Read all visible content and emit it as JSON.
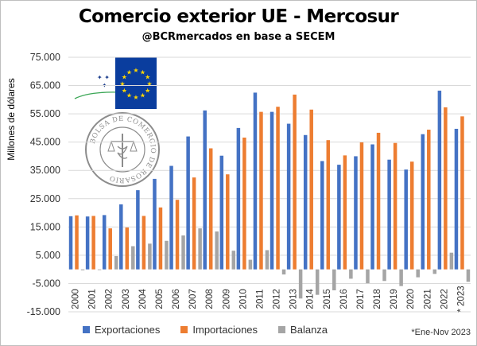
{
  "title": "Comercio exterior UE - Mercosur",
  "subtitle": "@BCRmercados en base a SECEM",
  "footnote": "*Ene-Nov 2023",
  "logo_text": "BOLSA DE COMERCIO DE ROSARIO",
  "colors": {
    "exportaciones": "#4472c4",
    "importaciones": "#ed7d31",
    "balanza": "#a5a5a5",
    "flag": "#0a3d9e",
    "stars": "#ffd700"
  },
  "icons": {
    "flag": "eu-flag-icon",
    "seal": "bcr-seal-icon"
  },
  "chart_data": {
    "type": "bar",
    "title": "Comercio exterior UE - Mercosur",
    "subtitle": "@BCRmercados en base a SECEM",
    "ylabel": "Millones de dólares",
    "xlabel": "",
    "ylim": [
      -15000,
      75000
    ],
    "yticks": [
      "75.000",
      "65.000",
      "55.000",
      "45.000",
      "35.000",
      "25.000",
      "15.000",
      "5.000",
      "-5.000",
      "-15.000"
    ],
    "ytick_values": [
      75000,
      65000,
      55000,
      45000,
      35000,
      25000,
      15000,
      5000,
      -5000,
      -15000
    ],
    "grid": true,
    "legend_position": "bottom",
    "categories": [
      "2000",
      "2001",
      "2002",
      "2003",
      "2004",
      "2005",
      "2006",
      "2007",
      "2008",
      "2009",
      "2010",
      "2011",
      "2012",
      "2013",
      "2014",
      "2015",
      "2016",
      "2017",
      "2018",
      "2019",
      "2020",
      "2021",
      "2022",
      "* 2023"
    ],
    "series": [
      {
        "name": "Exportaciones",
        "values": [
          18800,
          18700,
          19200,
          23000,
          28000,
          32000,
          36600,
          47000,
          56200,
          40200,
          50000,
          62500,
          55700,
          51500,
          47500,
          38300,
          37000,
          40000,
          44200,
          38800,
          35300,
          47800,
          63200,
          49700
        ]
      },
      {
        "name": "Importaciones",
        "values": [
          19100,
          18900,
          14500,
          14800,
          18900,
          21900,
          24600,
          32500,
          42800,
          33600,
          46600,
          55700,
          57500,
          61800,
          56500,
          45700,
          40300,
          44900,
          48300,
          44700,
          38100,
          49400,
          57300,
          54100
        ]
      },
      {
        "name": "Balanza",
        "values": [
          -300,
          -200,
          4700,
          8200,
          9100,
          10100,
          12000,
          14500,
          13400,
          6600,
          3400,
          6800,
          -1800,
          -10300,
          -9000,
          -7400,
          -3300,
          -4900,
          -4100,
          -5900,
          -2800,
          -1600,
          5900,
          -4400
        ]
      }
    ]
  }
}
